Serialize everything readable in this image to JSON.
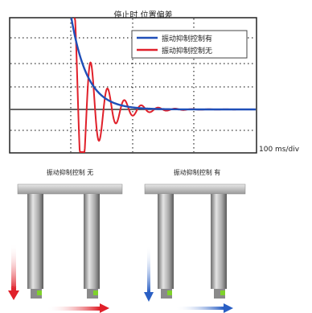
{
  "title": "停止时 位置偏差",
  "scale_label": "100 ms/div",
  "legend": {
    "with_control": "振动抑制控制有",
    "without_control": "振动抑制控制无"
  },
  "colors": {
    "with_control": "#1f4fb8",
    "without_control": "#e0202a",
    "frame": "#222222",
    "grid": "#000000",
    "reference": "#333333"
  },
  "chart_data": {
    "type": "line",
    "title": "停止时 位置偏差",
    "xlabel": "100 ms/div",
    "ylabel": "",
    "grid": true,
    "legend_position": "top-right",
    "series": [
      {
        "name": "振动抑制控制有",
        "shape": "decaying overshoot settling to zero without oscillation"
      },
      {
        "name": "振动抑制控制无",
        "shape": "damped oscillation decaying to zero"
      }
    ]
  },
  "illustrations": {
    "left_caption": "振动抑制控制 无",
    "right_caption": "振动抑制控制 有",
    "left_motion_color": "#e0202a",
    "right_motion_color": "#2a5fc4"
  }
}
